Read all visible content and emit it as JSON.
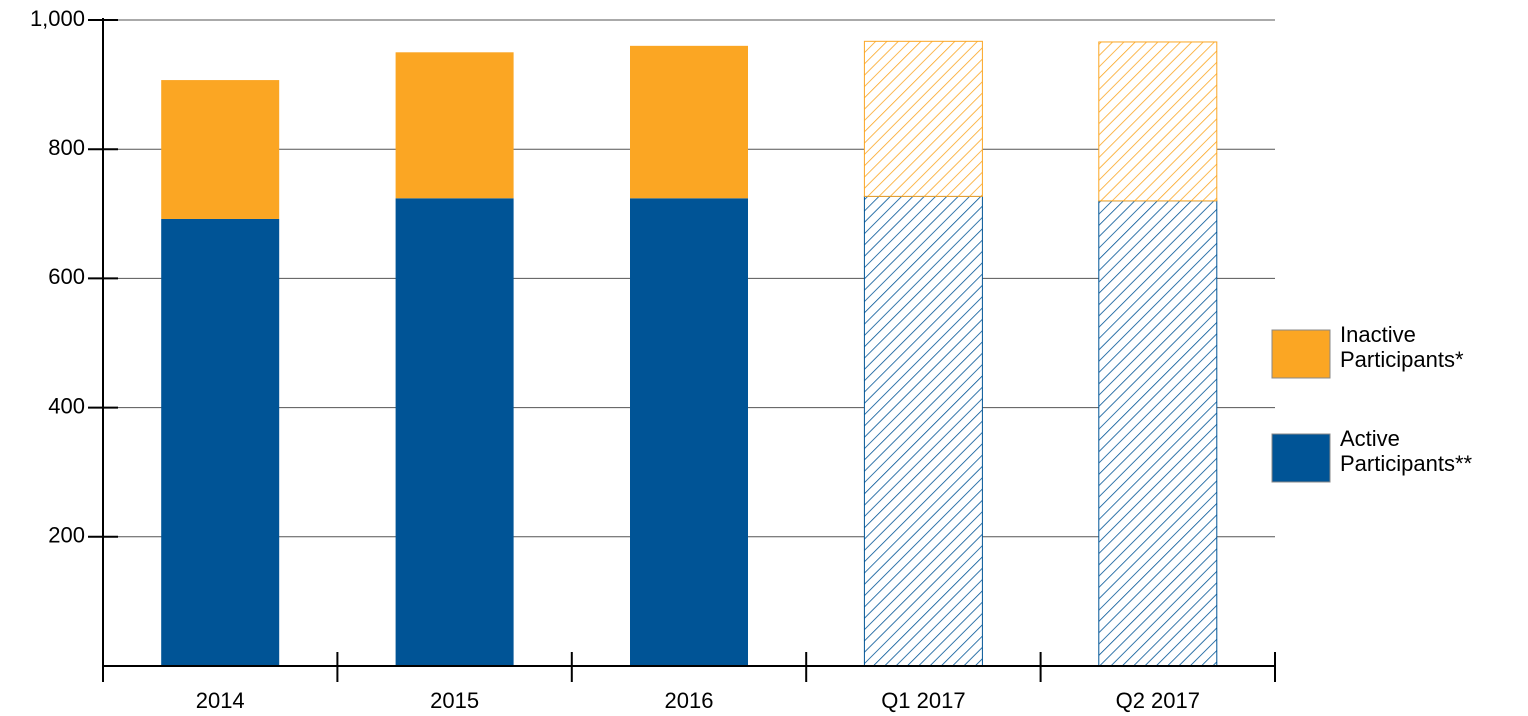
{
  "chart_data": {
    "type": "stacked_bar",
    "categories": [
      "2014",
      "2015",
      "2016",
      "Q1 2017",
      "Q2 2017"
    ],
    "series": [
      {
        "name": "Active Participants**",
        "color": "#005496",
        "values": [
          692,
          724,
          724,
          727,
          720
        ]
      },
      {
        "name": "Inactive Participants*",
        "color": "#fba623",
        "values": [
          215,
          226,
          236,
          240,
          246
        ]
      }
    ],
    "hatched": [
      false,
      false,
      false,
      true,
      true
    ],
    "ylim": [
      0,
      1000
    ],
    "yticks": [
      200,
      400,
      600,
      800,
      {
        "value": 1000,
        "label": "1,000"
      }
    ],
    "grid": true,
    "legend": "right"
  }
}
